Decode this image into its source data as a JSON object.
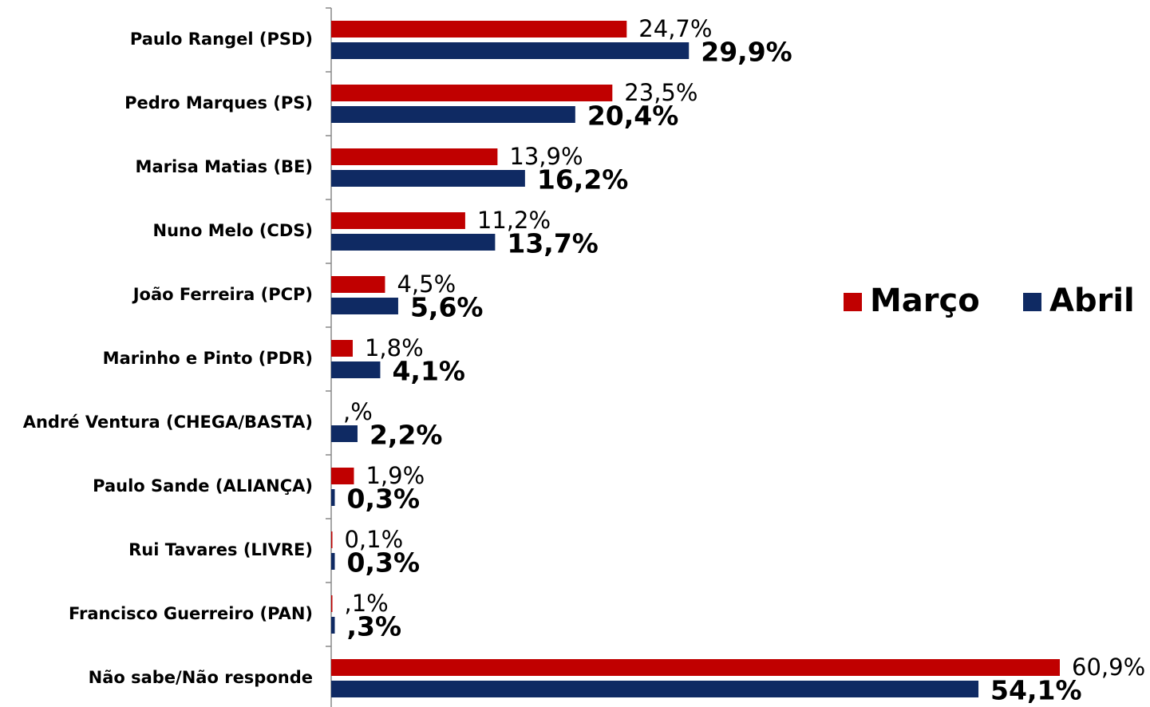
{
  "chart_data": {
    "type": "bar",
    "orientation": "horizontal",
    "categories": [
      "Paulo Rangel (PSD)",
      "Pedro Marques (PS)",
      "Marisa Matias (BE)",
      "Nuno Melo (CDS)",
      "João Ferreira (PCP)",
      "Marinho e Pinto (PDR)",
      "André Ventura (CHEGA/BASTA)",
      "Paulo Sande (ALIANÇA)",
      "Rui Tavares (LIVRE)",
      "Francisco Guerreiro (PAN)",
      "Não sabe/Não responde"
    ],
    "series": [
      {
        "name": "Março",
        "color": "#c00000",
        "values": [
          24.7,
          23.5,
          13.9,
          11.2,
          4.5,
          1.8,
          0,
          1.9,
          0.1,
          0.1,
          60.9
        ],
        "value_labels": [
          "24,7%",
          "23,5%",
          "13,9%",
          "11,2%",
          "4,5%",
          "1,8%",
          ",%",
          "1,9%",
          "0,1%",
          ",1%",
          "60,9%"
        ]
      },
      {
        "name": "Abril",
        "color": "#0f2a63",
        "values": [
          29.9,
          20.4,
          16.2,
          13.7,
          5.6,
          4.1,
          2.2,
          0.3,
          0.3,
          0.3,
          54.1
        ],
        "value_labels": [
          "29,9%",
          "20,4%",
          "16,2%",
          "13,7%",
          "5,6%",
          "4,1%",
          "2,2%",
          "0,3%",
          "0,3%",
          ",3%",
          "54,1%"
        ]
      }
    ],
    "legend": "right"
  }
}
